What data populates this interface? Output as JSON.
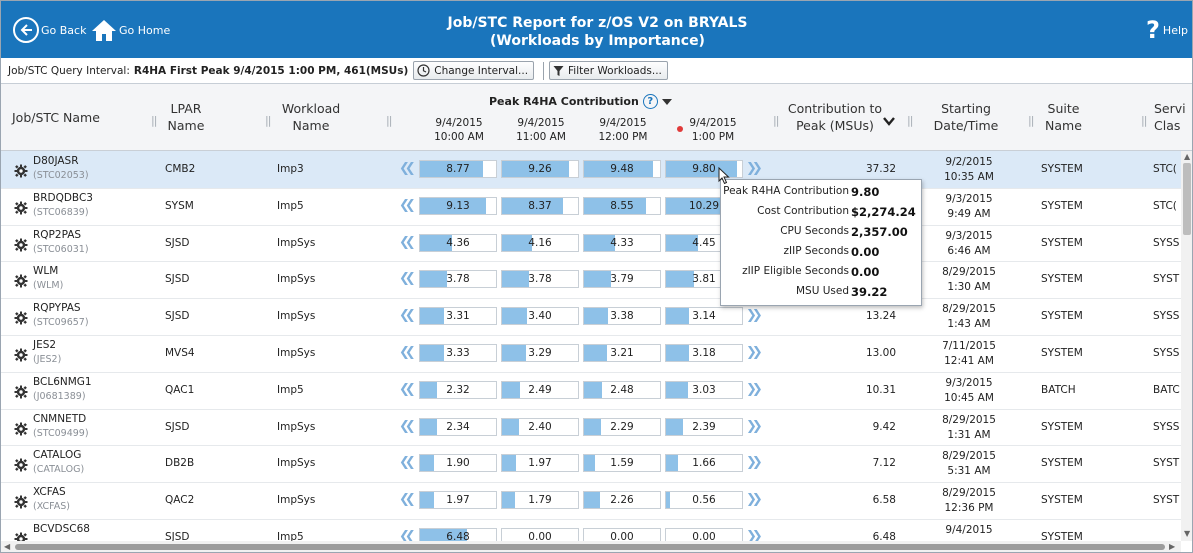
{
  "nav": {
    "back_label": "Go Back",
    "home_label": "Go Home",
    "title_line1": "Job/STC Report for z/OS V2 on BRYALS",
    "title_line2": "(Workloads by Importance)",
    "help_label": "Help"
  },
  "toolbar": {
    "interval_label": "Job/STC Query Interval:",
    "interval_value": "R4HA First Peak 9/4/2015 1:00 PM, 461(MSUs)",
    "change_interval_label": "Change Interval...",
    "filter_label": "Filter Workloads..."
  },
  "columns": {
    "job": "Job/STC Name",
    "lpar_1": "LPAR",
    "lpar_2": "Name",
    "workload_1": "Workload",
    "workload_2": "Name",
    "peak_title": "Peak R4HA Contribution",
    "peak_help": "?",
    "dates": [
      {
        "d": "9/4/2015",
        "t": "10:00 AM"
      },
      {
        "d": "9/4/2015",
        "t": "11:00 AM"
      },
      {
        "d": "9/4/2015",
        "t": "12:00 PM"
      },
      {
        "d": "9/4/2015",
        "t": "1:00 PM"
      }
    ],
    "contrib_1": "Contribution to",
    "contrib_2": "Peak (MSUs)",
    "start_1": "Starting",
    "start_2": "Date/Time",
    "suite_1": "Suite",
    "suite_2": "Name",
    "svc_1": "Servi",
    "svc_2": "Clas"
  },
  "bar_scale_max": 10.5,
  "rows": [
    {
      "name": "D80JASR",
      "id": "(STC02053)",
      "lpar": "CMB2",
      "workload": "Imp3",
      "vals": [
        "8.77",
        "9.26",
        "9.48",
        "9.80"
      ],
      "contrib": "37.32",
      "date": "9/2/2015",
      "time": "10:35 AM",
      "suite": "SYSTEM",
      "svc": "STC("
    },
    {
      "name": "BRDQDBC3",
      "id": "(STC06839)",
      "lpar": "SYSM",
      "workload": "Imp5",
      "vals": [
        "9.13",
        "8.37",
        "8.55",
        "10.29"
      ],
      "contrib": "",
      "date": "9/3/2015",
      "time": "9:49 AM",
      "suite": "SYSTEM",
      "svc": "STC("
    },
    {
      "name": "RQP2PAS",
      "id": "(STC06031)",
      "lpar": "SJSD",
      "workload": "ImpSys",
      "vals": [
        "4.36",
        "4.16",
        "4.33",
        "4.45"
      ],
      "contrib": "",
      "date": "9/3/2015",
      "time": "6:46 AM",
      "suite": "SYSTEM",
      "svc": "SYSS"
    },
    {
      "name": "WLM",
      "id": "(WLM)",
      "lpar": "SJSD",
      "workload": "ImpSys",
      "vals": [
        "3.78",
        "3.78",
        "3.79",
        "3.81"
      ],
      "contrib": "",
      "date": "8/29/2015",
      "time": "1:30 AM",
      "suite": "SYSTEM",
      "svc": "SYST"
    },
    {
      "name": "RQPYPAS",
      "id": "(STC09657)",
      "lpar": "SJSD",
      "workload": "ImpSys",
      "vals": [
        "3.31",
        "3.40",
        "3.38",
        "3.14"
      ],
      "contrib": "13.24",
      "date": "8/29/2015",
      "time": "1:43 AM",
      "suite": "SYSTEM",
      "svc": "SYSS"
    },
    {
      "name": "JES2",
      "id": "(JES2)",
      "lpar": "MVS4",
      "workload": "ImpSys",
      "vals": [
        "3.33",
        "3.29",
        "3.21",
        "3.18"
      ],
      "contrib": "13.00",
      "date": "7/11/2015",
      "time": "12:41 AM",
      "suite": "SYSTEM",
      "svc": "SYSS"
    },
    {
      "name": "BCL6NMG1",
      "id": "(J0681389)",
      "lpar": "QAC1",
      "workload": "Imp5",
      "vals": [
        "2.32",
        "2.49",
        "2.48",
        "3.03"
      ],
      "contrib": "10.31",
      "date": "9/3/2015",
      "time": "10:45 AM",
      "suite": "BATCH",
      "svc": "BATC"
    },
    {
      "name": "CNMNETD",
      "id": "(STC09499)",
      "lpar": "SJSD",
      "workload": "ImpSys",
      "vals": [
        "2.34",
        "2.40",
        "2.29",
        "2.39"
      ],
      "contrib": "9.42",
      "date": "8/29/2015",
      "time": "1:31 AM",
      "suite": "SYSTEM",
      "svc": "SYSS"
    },
    {
      "name": "CATALOG",
      "id": "(CATALOG)",
      "lpar": "DB2B",
      "workload": "ImpSys",
      "vals": [
        "1.90",
        "1.97",
        "1.59",
        "1.66"
      ],
      "contrib": "7.12",
      "date": "8/29/2015",
      "time": "5:31 AM",
      "suite": "SYSTEM",
      "svc": "SYST"
    },
    {
      "name": "XCFAS",
      "id": "(XCFAS)",
      "lpar": "QAC2",
      "workload": "ImpSys",
      "vals": [
        "1.97",
        "1.79",
        "2.26",
        "0.56"
      ],
      "contrib": "6.58",
      "date": "8/29/2015",
      "time": "12:36 PM",
      "suite": "SYSTEM",
      "svc": "SYST"
    },
    {
      "name": "BCVDSC68",
      "id": "",
      "lpar": "SJSD",
      "workload": "Imp5",
      "vals": [
        "6.48",
        "0.00",
        "0.00",
        "0.00"
      ],
      "contrib": "6.48",
      "date": "9/4/2015",
      "time": "",
      "suite": "SYSTEM",
      "svc": ""
    }
  ],
  "tooltip": [
    {
      "label": "Peak R4HA Contribution",
      "value": "9.80"
    },
    {
      "label": "Cost Contribution",
      "value": "$2,274.24"
    },
    {
      "label": "CPU Seconds",
      "value": "2,357.00"
    },
    {
      "label": "zIIP Seconds",
      "value": "0.00"
    },
    {
      "label": "zIIP Eligible Seconds",
      "value": "0.00"
    },
    {
      "label": "MSU Used",
      "value": "39.22"
    }
  ],
  "colors": {
    "header_bg": "#1a75bc",
    "bar_fill": "#8ec1e8",
    "selected_row": "#dbe9f7",
    "peak_marker": "#e03a3a"
  }
}
